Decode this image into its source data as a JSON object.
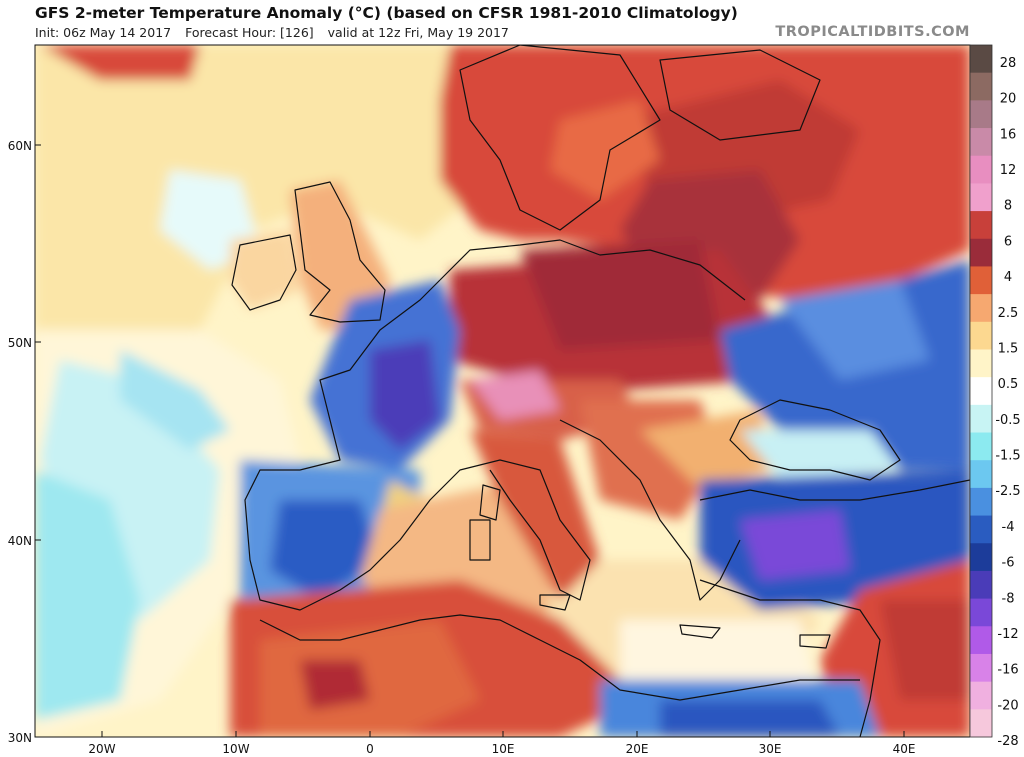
{
  "header": {
    "title": "GFS 2-meter Temperature Anomaly (°C) (based on CFSR 1981-2010 Climatology)",
    "init": "Init: 06z May 14 2017",
    "forecast_hour": "Forecast Hour: [126]",
    "valid": "valid at 12z Fri, May 19 2017",
    "brand": "TROPICALTIDBITS.COM"
  },
  "map": {
    "lat_ticks": [
      "60N",
      "50N",
      "40N",
      "30N"
    ],
    "lon_ticks": [
      "20W",
      "10W",
      "0",
      "10E",
      "20E",
      "30E",
      "40E"
    ]
  },
  "legend": {
    "labels": [
      "28",
      "20",
      "16",
      "12",
      "8",
      "6",
      "4",
      "2.5",
      "1.5",
      "0.5",
      "-0.5",
      "-1.5",
      "-2.5",
      "-4",
      "-6",
      "-8",
      "-12",
      "-16",
      "-20",
      "-28"
    ],
    "colors": [
      "#5a4a44",
      "#8c6a62",
      "#a87a88",
      "#c98aa8",
      "#e88ec0",
      "#f0a0cc",
      "#c8403a",
      "#9a2c3a",
      "#e06038",
      "#f6a870",
      "#fcd890",
      "#fff4c8",
      "#ffffff",
      "#c8f4f4",
      "#8ceaf0",
      "#6cc8f0",
      "#4a90e0",
      "#2a5cc0",
      "#1c3c9a",
      "#4a3cb8",
      "#7a48d8",
      "#b05ae8",
      "#d882e8",
      "#f0b0e0",
      "#f6c8dc"
    ]
  }
}
